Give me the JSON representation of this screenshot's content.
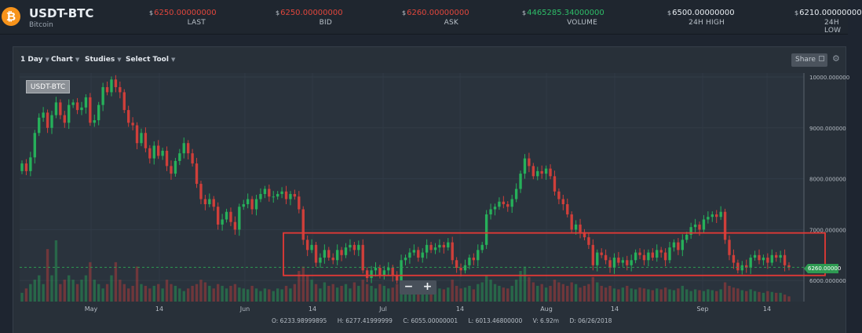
{
  "header": {
    "pair": "USDT-BTC",
    "coin_name": "Bitcoin",
    "logo_icon": "bitcoin-icon",
    "logo_glyph": "₿",
    "currency_symbol": "$",
    "stats": [
      {
        "value": "6250.00000000",
        "label": "LAST",
        "color": "red"
      },
      {
        "value": "6250.00000000",
        "label": "BID",
        "color": "red"
      },
      {
        "value": "6260.00000000",
        "label": "ASK",
        "color": "red"
      },
      {
        "value": "4465285.34000000",
        "label": "VOLUME",
        "color": "green"
      },
      {
        "value": "6500.00000000",
        "label": "24H HIGH",
        "color": "white"
      },
      {
        "value": "6210.00000000",
        "label": "24H LOW",
        "color": "white"
      }
    ]
  },
  "toolbar": {
    "interval": "1 Day",
    "chart": "Chart",
    "studies": "Studies",
    "select_tool": "Select Tool",
    "share": "Share",
    "settings_icon": "gear-icon"
  },
  "chart_label": "USDT-BTC",
  "zoom": {
    "minus": "−",
    "plus": "+"
  },
  "current_price_tag": "6260.00000",
  "ohlc_readout": {
    "open": "O: 6233.98999895",
    "high": "H: 6277.41999999",
    "close": "C: 6055.00000001",
    "low": "L: 6013.46800000",
    "volume": "V: 6.92m",
    "date": "D: 06/26/2018"
  },
  "colors": {
    "up": "#26b05a",
    "down": "#cf3f3a",
    "annotation": "#e53935",
    "price_line": "#2e9a52"
  },
  "chart_data": {
    "type": "candlestick",
    "x_ticks": [
      "May",
      "14",
      "Jun",
      "14",
      "Jul",
      "14",
      "Aug",
      "14",
      "Sep",
      "14"
    ],
    "y_ticks": [
      "10000.000000",
      "9000.000000",
      "8000.000000",
      "7000.000000",
      "6000.000000"
    ],
    "ylim": [
      5600,
      10100
    ],
    "grid": true,
    "current_price": 6260,
    "annotation": {
      "shape": "rectangle",
      "price_range": [
        6100,
        6750
      ],
      "from": "Jun 14",
      "to": "Sep 19"
    },
    "close": [
      8300,
      8150,
      8420,
      8900,
      9200,
      9300,
      9000,
      9250,
      9500,
      9250,
      9100,
      9450,
      9500,
      9350,
      9400,
      9600,
      9100,
      9150,
      9450,
      9800,
      9700,
      9950,
      9800,
      9700,
      9350,
      9100,
      9050,
      8700,
      8900,
      8600,
      8400,
      8650,
      8450,
      8550,
      8250,
      8100,
      8350,
      8500,
      8700,
      8500,
      8300,
      7900,
      7600,
      7500,
      7600,
      7450,
      7100,
      7200,
      7350,
      7150,
      7000,
      7450,
      7500,
      7600,
      7400,
      7600,
      7700,
      7800,
      7650,
      7650,
      7700,
      7750,
      7600,
      7700,
      7650,
      7400,
      6800,
      6600,
      6700,
      6350,
      6450,
      6600,
      6450,
      6400,
      6600,
      6500,
      6650,
      6700,
      6600,
      6700,
      6200,
      6050,
      6200,
      6250,
      6100,
      6200,
      6250,
      6100,
      6000,
      6400,
      6450,
      6550,
      6600,
      6450,
      6550,
      6700,
      6600,
      6650,
      6700,
      6650,
      6750,
      6400,
      6250,
      6200,
      6300,
      6450,
      6400,
      6600,
      6700,
      7300,
      7400,
      7450,
      7550,
      7500,
      7450,
      7600,
      7800,
      8100,
      8400,
      8250,
      8050,
      8150,
      8100,
      8200,
      8050,
      7750,
      7600,
      7500,
      7300,
      7000,
      7100,
      6950,
      6850,
      6700,
      6300,
      6550,
      6500,
      6400,
      6250,
      6450,
      6350,
      6400,
      6300,
      6400,
      6550,
      6500,
      6400,
      6550,
      6450,
      6600,
      6550,
      6400,
      6650,
      6750,
      6600,
      6800,
      6900,
      7050,
      7100,
      7000,
      7200,
      7250,
      7300,
      7250,
      7350,
      6800,
      6500,
      6350,
      6200,
      6300,
      6250,
      6450,
      6500,
      6400,
      6450,
      6350,
      6500,
      6450,
      6500,
      6300,
      6260
    ],
    "volume": [
      10,
      15,
      20,
      25,
      30,
      20,
      60,
      30,
      70,
      20,
      25,
      30,
      25,
      20,
      25,
      30,
      45,
      25,
      20,
      15,
      20,
      30,
      45,
      25,
      20,
      15,
      18,
      40,
      20,
      18,
      15,
      18,
      20,
      15,
      25,
      20,
      18,
      15,
      12,
      15,
      18,
      20,
      25,
      22,
      18,
      15,
      20,
      18,
      15,
      18,
      20,
      16,
      15,
      14,
      18,
      15,
      12,
      15,
      14,
      12,
      15,
      14,
      18,
      15,
      20,
      35,
      40,
      30,
      25,
      20,
      15,
      22,
      18,
      20,
      16,
      18,
      20,
      15,
      22,
      18,
      25,
      20,
      18,
      15,
      20,
      18,
      15,
      16,
      20,
      25,
      18,
      20,
      16,
      18,
      15,
      14,
      16,
      18,
      15,
      14,
      16,
      25,
      18,
      15,
      16,
      18,
      14,
      20,
      22,
      30,
      25,
      20,
      18,
      16,
      15,
      18,
      25,
      35,
      40,
      28,
      22,
      18,
      20,
      16,
      18,
      25,
      22,
      20,
      18,
      22,
      20,
      16,
      18,
      20,
      28,
      22,
      18,
      16,
      18,
      15,
      14,
      16,
      18,
      15,
      14,
      16,
      15,
      14,
      13,
      15,
      14,
      16,
      14,
      13,
      15,
      18,
      14,
      12,
      14,
      13,
      12,
      14,
      13,
      12,
      14,
      22,
      18,
      16,
      15,
      13,
      12,
      14,
      12,
      11,
      10,
      12,
      11,
      10,
      10,
      8,
      6
    ]
  }
}
